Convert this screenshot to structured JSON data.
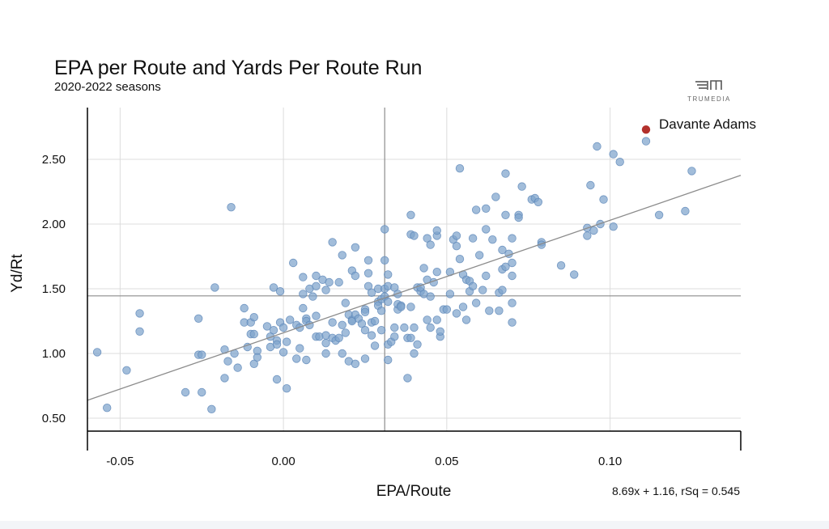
{
  "title": "EPA per Route and Yards Per Route Run",
  "subtitle": "2020-2022 seasons",
  "logo": {
    "text": "TRUMEDIA",
    "icon": "trumedia-logo-icon"
  },
  "equation": "8.69x + 1.16, rSq = 0.545",
  "colors": {
    "point": "#7ea3cc",
    "point_stroke": "#5b86b8",
    "highlight": "#b3312c",
    "grid": "#dcdcdc",
    "line": "#8c8c8c",
    "axis": "#000000"
  },
  "chart_data": {
    "type": "scatter",
    "title": "EPA per Route and Yards Per Route Run",
    "subtitle": "2020-2022 seasons",
    "xlabel": "EPA/Route",
    "ylabel": "Yd/Rt",
    "xlim": [
      -0.06,
      0.14
    ],
    "ylim": [
      0.4,
      2.9
    ],
    "x_ticks": [
      -0.05,
      0.0,
      0.05,
      0.1
    ],
    "x_tick_labels": [
      "-0.05",
      "0.00",
      "0.05",
      "0.10"
    ],
    "y_ticks": [
      0.5,
      1.0,
      1.5,
      2.0,
      2.5
    ],
    "y_tick_labels": [
      "0.50",
      "1.00",
      "1.50",
      "2.00",
      "2.50"
    ],
    "grid": true,
    "reference_lines": {
      "x_mean": 0.031,
      "y_mean": 1.445
    },
    "trendline": {
      "slope": 8.69,
      "intercept": 1.16,
      "r_squared": 0.545,
      "label": "8.69x + 1.16, rSq = 0.545"
    },
    "highlight": {
      "name": "Davante Adams",
      "x": 0.111,
      "y": 2.73
    },
    "points": [
      [
        -0.057,
        1.01
      ],
      [
        -0.054,
        0.58
      ],
      [
        -0.048,
        0.87
      ],
      [
        -0.044,
        1.31
      ],
      [
        -0.044,
        1.17
      ],
      [
        -0.03,
        0.7
      ],
      [
        -0.026,
        1.27
      ],
      [
        -0.026,
        0.99
      ],
      [
        -0.025,
        0.99
      ],
      [
        -0.025,
        0.7
      ],
      [
        -0.022,
        0.57
      ],
      [
        -0.021,
        1.51
      ],
      [
        -0.018,
        1.03
      ],
      [
        -0.018,
        0.81
      ],
      [
        -0.017,
        0.94
      ],
      [
        -0.016,
        2.13
      ],
      [
        -0.015,
        1.0
      ],
      [
        -0.014,
        0.89
      ],
      [
        -0.012,
        1.35
      ],
      [
        -0.012,
        1.24
      ],
      [
        -0.011,
        1.05
      ],
      [
        -0.01,
        1.24
      ],
      [
        -0.01,
        1.15
      ],
      [
        -0.009,
        1.28
      ],
      [
        -0.009,
        0.92
      ],
      [
        -0.009,
        1.15
      ],
      [
        -0.008,
        1.02
      ],
      [
        -0.008,
        0.97
      ],
      [
        -0.005,
        1.21
      ],
      [
        -0.004,
        1.05
      ],
      [
        -0.004,
        1.13
      ],
      [
        -0.003,
        1.51
      ],
      [
        -0.003,
        1.18
      ],
      [
        -0.002,
        1.1
      ],
      [
        -0.002,
        0.8
      ],
      [
        -0.001,
        1.48
      ],
      [
        -0.001,
        1.24
      ],
      [
        0.0,
        1.01
      ],
      [
        0.0,
        1.2
      ],
      [
        -0.002,
        1.07
      ],
      [
        0.001,
        0.73
      ],
      [
        0.001,
        1.09
      ],
      [
        0.002,
        1.26
      ],
      [
        0.003,
        1.7
      ],
      [
        0.004,
        0.96
      ],
      [
        0.004,
        1.22
      ],
      [
        0.005,
        1.2
      ],
      [
        0.005,
        1.04
      ],
      [
        0.006,
        1.59
      ],
      [
        0.006,
        1.46
      ],
      [
        0.006,
        1.35
      ],
      [
        0.007,
        1.27
      ],
      [
        0.007,
        1.25
      ],
      [
        0.007,
        0.95
      ],
      [
        0.008,
        1.5
      ],
      [
        0.008,
        1.22
      ],
      [
        0.009,
        1.44
      ],
      [
        0.01,
        1.6
      ],
      [
        0.01,
        1.52
      ],
      [
        0.01,
        1.29
      ],
      [
        0.01,
        1.13
      ],
      [
        0.011,
        1.13
      ],
      [
        0.012,
        1.57
      ],
      [
        0.013,
        1.14
      ],
      [
        0.013,
        1.08
      ],
      [
        0.013,
        1.0
      ],
      [
        0.013,
        1.49
      ],
      [
        0.014,
        1.55
      ],
      [
        0.015,
        1.86
      ],
      [
        0.015,
        1.12
      ],
      [
        0.015,
        1.24
      ],
      [
        0.016,
        1.1
      ],
      [
        0.017,
        1.55
      ],
      [
        0.017,
        1.12
      ],
      [
        0.018,
        1.22
      ],
      [
        0.018,
        1.0
      ],
      [
        0.018,
        1.76
      ],
      [
        0.019,
        1.39
      ],
      [
        0.019,
        1.16
      ],
      [
        0.02,
        1.3
      ],
      [
        0.02,
        0.94
      ],
      [
        0.021,
        1.64
      ],
      [
        0.021,
        1.26
      ],
      [
        0.021,
        1.25
      ],
      [
        0.022,
        1.82
      ],
      [
        0.022,
        1.6
      ],
      [
        0.022,
        1.3
      ],
      [
        0.022,
        0.92
      ],
      [
        0.023,
        1.27
      ],
      [
        0.024,
        1.23
      ],
      [
        0.025,
        1.34
      ],
      [
        0.025,
        1.32
      ],
      [
        0.025,
        1.18
      ],
      [
        0.025,
        0.96
      ],
      [
        0.026,
        1.72
      ],
      [
        0.026,
        1.52
      ],
      [
        0.026,
        1.62
      ],
      [
        0.027,
        1.47
      ],
      [
        0.027,
        1.14
      ],
      [
        0.027,
        1.24
      ],
      [
        0.028,
        1.25
      ],
      [
        0.028,
        1.06
      ],
      [
        0.029,
        1.5
      ],
      [
        0.029,
        1.4
      ],
      [
        0.029,
        1.37
      ],
      [
        0.03,
        1.42
      ],
      [
        0.03,
        1.33
      ],
      [
        0.03,
        1.18
      ],
      [
        0.031,
        1.96
      ],
      [
        0.031,
        1.72
      ],
      [
        0.031,
        1.5
      ],
      [
        0.031,
        1.44
      ],
      [
        0.032,
        1.61
      ],
      [
        0.032,
        1.52
      ],
      [
        0.032,
        1.4
      ],
      [
        0.032,
        1.07
      ],
      [
        0.032,
        0.95
      ],
      [
        0.033,
        1.09
      ],
      [
        0.034,
        1.51
      ],
      [
        0.034,
        1.2
      ],
      [
        0.034,
        1.13
      ],
      [
        0.035,
        1.46
      ],
      [
        0.035,
        1.34
      ],
      [
        0.035,
        1.38
      ],
      [
        0.036,
        1.37
      ],
      [
        0.036,
        1.36
      ],
      [
        0.037,
        1.2
      ],
      [
        0.038,
        0.81
      ],
      [
        0.038,
        1.12
      ],
      [
        0.039,
        2.07
      ],
      [
        0.039,
        1.92
      ],
      [
        0.039,
        1.36
      ],
      [
        0.039,
        1.12
      ],
      [
        0.04,
        1.91
      ],
      [
        0.04,
        1.2
      ],
      [
        0.04,
        1.0
      ],
      [
        0.041,
        1.51
      ],
      [
        0.041,
        1.07
      ],
      [
        0.042,
        1.48
      ],
      [
        0.042,
        1.51
      ],
      [
        0.043,
        1.66
      ],
      [
        0.043,
        1.46
      ],
      [
        0.044,
        1.89
      ],
      [
        0.044,
        1.57
      ],
      [
        0.044,
        1.26
      ],
      [
        0.045,
        1.2
      ],
      [
        0.045,
        1.44
      ],
      [
        0.045,
        1.84
      ],
      [
        0.046,
        1.55
      ],
      [
        0.047,
        1.91
      ],
      [
        0.047,
        1.95
      ],
      [
        0.047,
        1.63
      ],
      [
        0.047,
        1.26
      ],
      [
        0.048,
        1.13
      ],
      [
        0.048,
        1.17
      ],
      [
        0.049,
        1.34
      ],
      [
        0.05,
        1.34
      ],
      [
        0.051,
        1.63
      ],
      [
        0.051,
        1.46
      ],
      [
        0.052,
        1.88
      ],
      [
        0.053,
        1.91
      ],
      [
        0.053,
        1.83
      ],
      [
        0.053,
        1.31
      ],
      [
        0.054,
        2.43
      ],
      [
        0.054,
        1.73
      ],
      [
        0.055,
        1.61
      ],
      [
        0.055,
        1.36
      ],
      [
        0.056,
        1.57
      ],
      [
        0.056,
        1.26
      ],
      [
        0.057,
        1.48
      ],
      [
        0.057,
        1.56
      ],
      [
        0.058,
        1.89
      ],
      [
        0.058,
        1.52
      ],
      [
        0.059,
        1.39
      ],
      [
        0.059,
        2.11
      ],
      [
        0.06,
        1.76
      ],
      [
        0.061,
        1.49
      ],
      [
        0.062,
        2.12
      ],
      [
        0.062,
        1.96
      ],
      [
        0.062,
        1.6
      ],
      [
        0.063,
        1.33
      ],
      [
        0.064,
        1.88
      ],
      [
        0.065,
        2.21
      ],
      [
        0.066,
        1.33
      ],
      [
        0.066,
        1.47
      ],
      [
        0.067,
        1.8
      ],
      [
        0.067,
        1.65
      ],
      [
        0.067,
        1.49
      ],
      [
        0.068,
        2.39
      ],
      [
        0.068,
        2.07
      ],
      [
        0.068,
        1.67
      ],
      [
        0.069,
        1.77
      ],
      [
        0.07,
        1.89
      ],
      [
        0.07,
        1.6
      ],
      [
        0.07,
        1.24
      ],
      [
        0.07,
        1.7
      ],
      [
        0.07,
        1.39
      ],
      [
        0.072,
        2.07
      ],
      [
        0.072,
        2.05
      ],
      [
        0.073,
        2.29
      ],
      [
        0.076,
        2.19
      ],
      [
        0.077,
        2.2
      ],
      [
        0.078,
        2.17
      ],
      [
        0.079,
        1.86
      ],
      [
        0.079,
        1.84
      ],
      [
        0.085,
        1.68
      ],
      [
        0.089,
        1.61
      ],
      [
        0.093,
        1.97
      ],
      [
        0.093,
        1.91
      ],
      [
        0.094,
        2.3
      ],
      [
        0.095,
        1.95
      ],
      [
        0.096,
        2.6
      ],
      [
        0.097,
        2.0
      ],
      [
        0.098,
        2.19
      ],
      [
        0.101,
        1.98
      ],
      [
        0.101,
        2.54
      ],
      [
        0.103,
        2.48
      ],
      [
        0.111,
        2.64
      ],
      [
        0.115,
        2.07
      ],
      [
        0.123,
        2.1
      ],
      [
        0.125,
        2.41
      ]
    ]
  }
}
